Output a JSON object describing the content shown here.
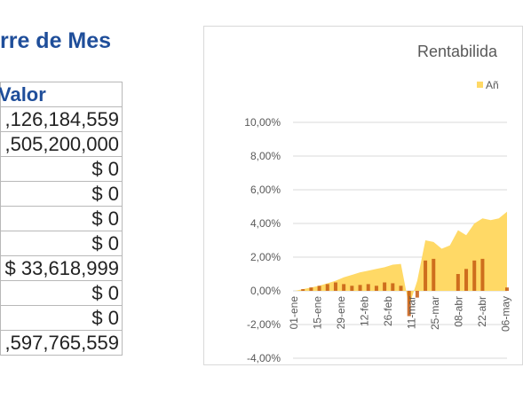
{
  "page": {
    "title": "rre de Mes"
  },
  "table": {
    "header": "Valor",
    "rows": [
      {
        "value": ",126,184,559"
      },
      {
        "value": ",505,200,000"
      },
      {
        "value": "$ 0"
      },
      {
        "value": "$ 0"
      },
      {
        "value": "$ 0"
      },
      {
        "value": "$ 0"
      },
      {
        "value": "$ 33,618,999"
      },
      {
        "value": "$ 0"
      },
      {
        "value": "$ 0"
      },
      {
        "value": ",597,765,559"
      }
    ]
  },
  "chart_data": {
    "type": "area",
    "title": "Rentabilida",
    "legend": [
      "Añ"
    ],
    "legend_position": "top-right",
    "ylim": [
      -4,
      10
    ],
    "y_ticks": [
      "10,00%",
      "8,00%",
      "6,00%",
      "4,00%",
      "2,00%",
      "0,00%",
      "-2,00%",
      "-4,00%"
    ],
    "x_ticks": [
      "01-ene",
      "15-ene",
      "29-ene",
      "12-feb",
      "26-feb",
      "11-mar",
      "25-mar",
      "08-abr",
      "22-abr",
      "06-may"
    ],
    "grid": true,
    "colors": {
      "area": "#ffd966",
      "bars": "#c55a11",
      "grid": "#d9d9d9"
    },
    "series": [
      {
        "values": [
          0.0,
          0.1,
          0.2,
          0.3,
          0.45,
          0.6,
          0.8,
          0.95,
          1.1,
          1.2,
          1.3,
          1.4,
          1.55,
          1.6,
          -0.9,
          0.6,
          3.0,
          2.9,
          2.5,
          2.7,
          3.6,
          3.3,
          4.0,
          4.3,
          4.2,
          4.3,
          4.7
        ]
      },
      {
        "values": [
          0.0,
          0.1,
          0.2,
          0.3,
          0.4,
          0.5,
          0.4,
          0.3,
          0.35,
          0.4,
          0.3,
          0.5,
          0.45,
          0.3,
          -1.5,
          -0.4,
          1.8,
          1.9,
          0.0,
          0.0,
          1.0,
          1.3,
          1.8,
          1.9,
          0.0,
          0.0,
          0.2
        ]
      }
    ]
  }
}
